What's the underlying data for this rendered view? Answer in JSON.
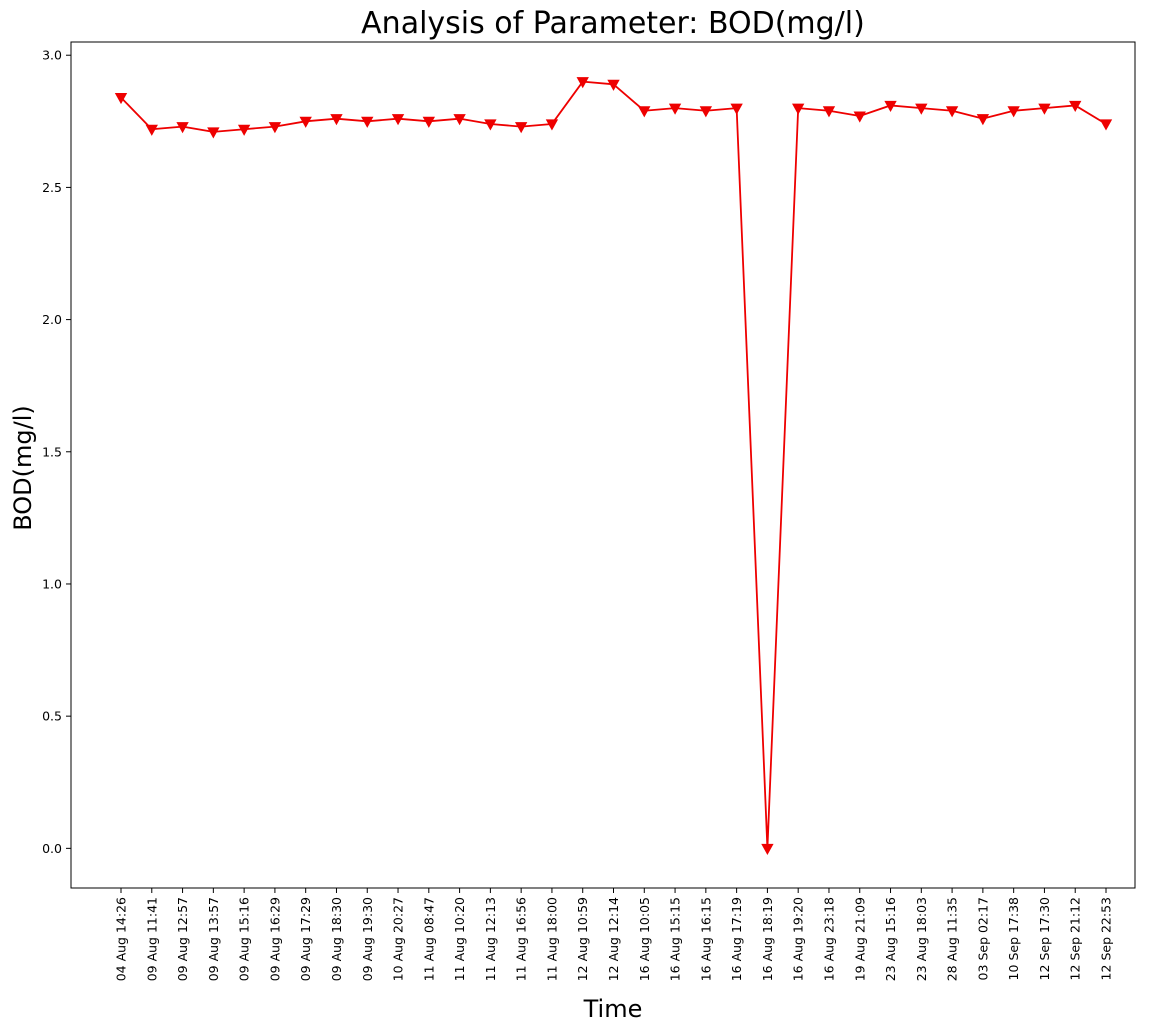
{
  "chart_data": {
    "type": "line",
    "title": "Analysis of Parameter: BOD(mg/l)",
    "xlabel": "Time",
    "ylabel": "BOD(mg/l)",
    "ylim": [
      -0.15,
      3.05
    ],
    "y_ticks": [
      "0.0",
      "0.5",
      "1.0",
      "1.5",
      "2.0",
      "2.5",
      "3.0"
    ],
    "y_tick_values": [
      0.0,
      0.5,
      1.0,
      1.5,
      2.0,
      2.5,
      3.0
    ],
    "grid": false,
    "legend": "none",
    "marker": "triangle-down",
    "categories": [
      "04 Aug 14:26",
      "09 Aug 11:41",
      "09 Aug 12:57",
      "09 Aug 13:57",
      "09 Aug 15:16",
      "09 Aug 16:29",
      "09 Aug 17:29",
      "09 Aug 18:30",
      "09 Aug 19:30",
      "10 Aug 20:27",
      "11 Aug 08:47",
      "11 Aug 10:20",
      "11 Aug 12:13",
      "11 Aug 16:56",
      "11 Aug 18:00",
      "12 Aug 10:59",
      "12 Aug 12:14",
      "16 Aug 10:05",
      "16 Aug 15:15",
      "16 Aug 16:15",
      "16 Aug 17:19",
      "16 Aug 18:19",
      "16 Aug 19:20",
      "16 Aug 23:18",
      "19 Aug 21:09",
      "23 Aug 15:16",
      "23 Aug 18:03",
      "28 Aug 11:35",
      "03 Sep 02:17",
      "10 Sep 17:38",
      "12 Sep 17:30",
      "12 Sep 21:12",
      "12 Sep 22:53"
    ],
    "series": [
      {
        "color": "#ee0000",
        "values": [
          2.84,
          2.72,
          2.73,
          2.71,
          2.72,
          2.73,
          2.75,
          2.76,
          2.75,
          2.76,
          2.75,
          2.76,
          2.74,
          2.73,
          2.74,
          2.9,
          2.89,
          2.79,
          2.8,
          2.79,
          2.8,
          0.0,
          2.8,
          2.79,
          2.77,
          2.81,
          2.8,
          2.79,
          2.76,
          2.79,
          2.8,
          2.81,
          2.74
        ]
      }
    ]
  }
}
